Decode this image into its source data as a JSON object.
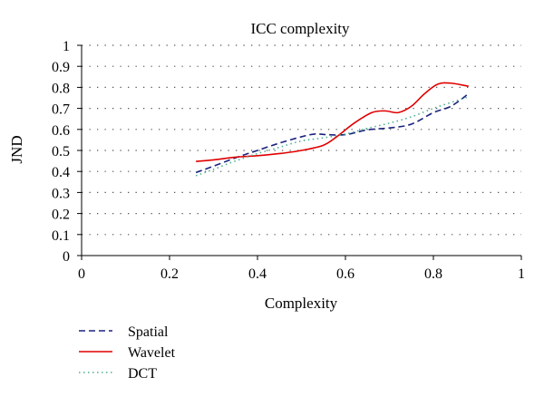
{
  "chart_data": {
    "type": "line",
    "title": "ICC complexity",
    "xlabel": "Complexity",
    "ylabel": "JND",
    "xlim": [
      0,
      1
    ],
    "ylim": [
      0,
      1
    ],
    "x_ticks": [
      0,
      0.2,
      0.4,
      0.6,
      0.8,
      1
    ],
    "y_ticks": [
      0,
      0.1,
      0.2,
      0.3,
      0.4,
      0.5,
      0.6,
      0.7,
      0.8,
      0.9,
      1
    ],
    "x_tick_labels": [
      "0",
      "0.2",
      "0.4",
      "0.6",
      "0.8",
      "1"
    ],
    "y_tick_labels": [
      "0",
      "0.1",
      "0.2",
      "0.3",
      "0.4",
      "0.5",
      "0.6",
      "0.7",
      "0.8",
      "0.9",
      "1"
    ],
    "grid": "horizontal dotted",
    "legend_position": "bottom-left",
    "series": [
      {
        "name": "Spatial",
        "color": "#1a237e",
        "dash": "dashed",
        "points": [
          [
            0.26,
            0.395
          ],
          [
            0.3,
            0.425
          ],
          [
            0.35,
            0.465
          ],
          [
            0.4,
            0.5
          ],
          [
            0.45,
            0.535
          ],
          [
            0.5,
            0.565
          ],
          [
            0.53,
            0.578
          ],
          [
            0.56,
            0.575
          ],
          [
            0.6,
            0.575
          ],
          [
            0.65,
            0.598
          ],
          [
            0.7,
            0.607
          ],
          [
            0.75,
            0.625
          ],
          [
            0.8,
            0.68
          ],
          [
            0.84,
            0.71
          ],
          [
            0.88,
            0.77
          ]
        ]
      },
      {
        "name": "Wavelet",
        "color": "#e00000",
        "dash": "solid",
        "points": [
          [
            0.26,
            0.448
          ],
          [
            0.3,
            0.455
          ],
          [
            0.35,
            0.468
          ],
          [
            0.4,
            0.475
          ],
          [
            0.45,
            0.485
          ],
          [
            0.5,
            0.5
          ],
          [
            0.55,
            0.525
          ],
          [
            0.58,
            0.565
          ],
          [
            0.62,
            0.63
          ],
          [
            0.66,
            0.68
          ],
          [
            0.69,
            0.688
          ],
          [
            0.72,
            0.68
          ],
          [
            0.75,
            0.71
          ],
          [
            0.78,
            0.77
          ],
          [
            0.81,
            0.815
          ],
          [
            0.84,
            0.82
          ],
          [
            0.88,
            0.805
          ]
        ]
      },
      {
        "name": "DCT",
        "color": "#4caf92",
        "dash": "dotted",
        "points": [
          [
            0.26,
            0.38
          ],
          [
            0.3,
            0.41
          ],
          [
            0.35,
            0.45
          ],
          [
            0.4,
            0.485
          ],
          [
            0.45,
            0.515
          ],
          [
            0.5,
            0.545
          ],
          [
            0.55,
            0.56
          ],
          [
            0.6,
            0.578
          ],
          [
            0.65,
            0.605
          ],
          [
            0.7,
            0.63
          ],
          [
            0.75,
            0.66
          ],
          [
            0.8,
            0.7
          ],
          [
            0.85,
            0.735
          ],
          [
            0.88,
            0.755
          ]
        ]
      }
    ]
  }
}
